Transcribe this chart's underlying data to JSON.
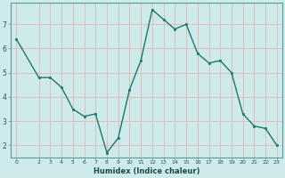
{
  "x": [
    0,
    2,
    3,
    4,
    5,
    6,
    7,
    8,
    9,
    10,
    11,
    12,
    13,
    14,
    15,
    16,
    17,
    18,
    19,
    20,
    21,
    22,
    23
  ],
  "y": [
    6.4,
    4.8,
    4.8,
    4.4,
    3.5,
    3.2,
    3.3,
    1.7,
    2.3,
    4.3,
    5.5,
    7.6,
    7.2,
    6.8,
    7.0,
    5.8,
    5.4,
    5.5,
    5.0,
    3.3,
    2.8,
    2.7,
    2.0
  ],
  "xlabel": "Humidex (Indice chaleur)",
  "line_color": "#1a7a6a",
  "marker_color": "#1a7a6a",
  "bg_color": "#ceeaea",
  "grid_color": "#e8b4b4",
  "xlim_min": -0.5,
  "xlim_max": 23.5,
  "ylim_min": 1.5,
  "ylim_max": 7.9,
  "yticks": [
    2,
    3,
    4,
    5,
    6,
    7
  ],
  "xticks": [
    0,
    2,
    3,
    4,
    5,
    6,
    7,
    8,
    9,
    10,
    11,
    12,
    13,
    14,
    15,
    16,
    17,
    18,
    19,
    20,
    21,
    22,
    23
  ]
}
